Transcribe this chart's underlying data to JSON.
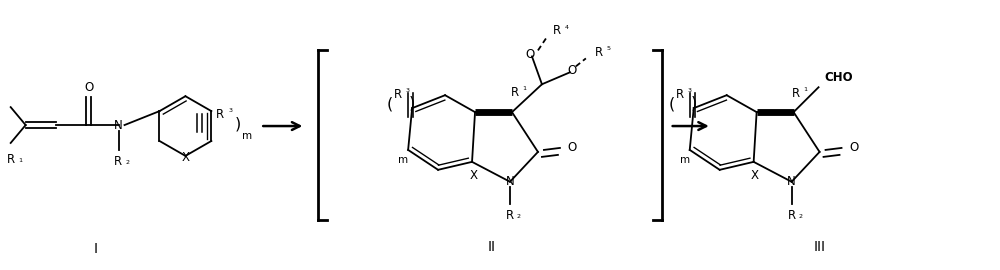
{
  "background_color": "#ffffff",
  "figsize": [
    10.0,
    2.7
  ],
  "dpi": 100,
  "label_I": "I",
  "label_II": "II",
  "label_III": "III"
}
